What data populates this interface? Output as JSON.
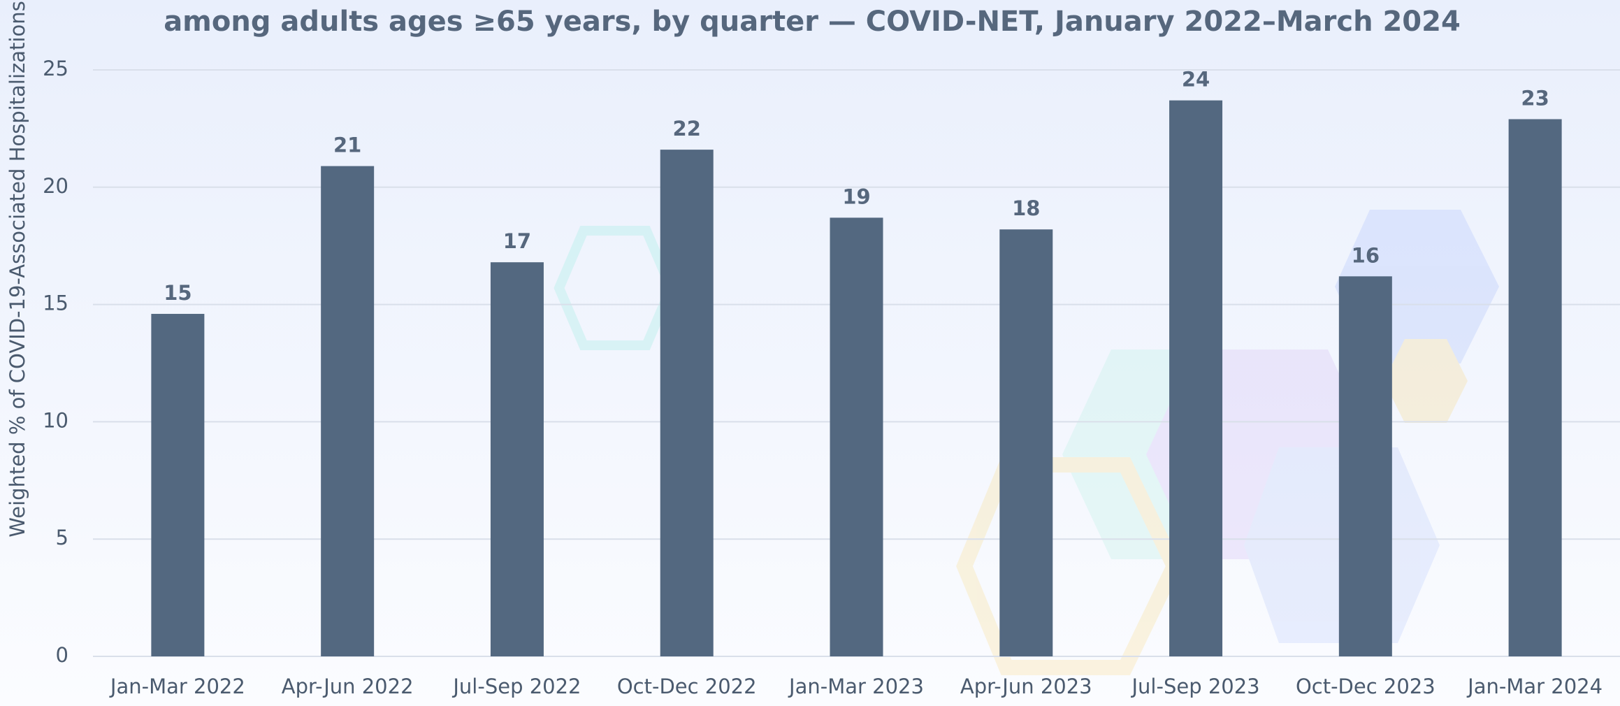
{
  "chart_data": {
    "type": "bar",
    "title": "among adults ages ≥65 years, by quarter — COVID-NET, January 2022–March 2024",
    "y_label": "Weighted % of COVID-19-Associated Hospitalizations",
    "categories": [
      "Jan-Mar 2022",
      "Apr-Jun 2022",
      "Jul-Sep 2022",
      "Oct-Dec 2022",
      "Jan-Mar 2023",
      "Apr-Jun 2023",
      "Jul-Sep 2023",
      "Oct-Dec 2023",
      "Jan-Mar 2024"
    ],
    "values": [
      14.6,
      20.9,
      16.8,
      21.6,
      18.7,
      18.2,
      23.7,
      16.2,
      22.9
    ],
    "value_labels": [
      "15",
      "21",
      "17",
      "22",
      "19",
      "18",
      "24",
      "16",
      "23"
    ],
    "color": "#536880",
    "ylim": [
      0,
      25
    ],
    "yticks": [
      0,
      5,
      10,
      15,
      20,
      25
    ],
    "grid": true
  }
}
